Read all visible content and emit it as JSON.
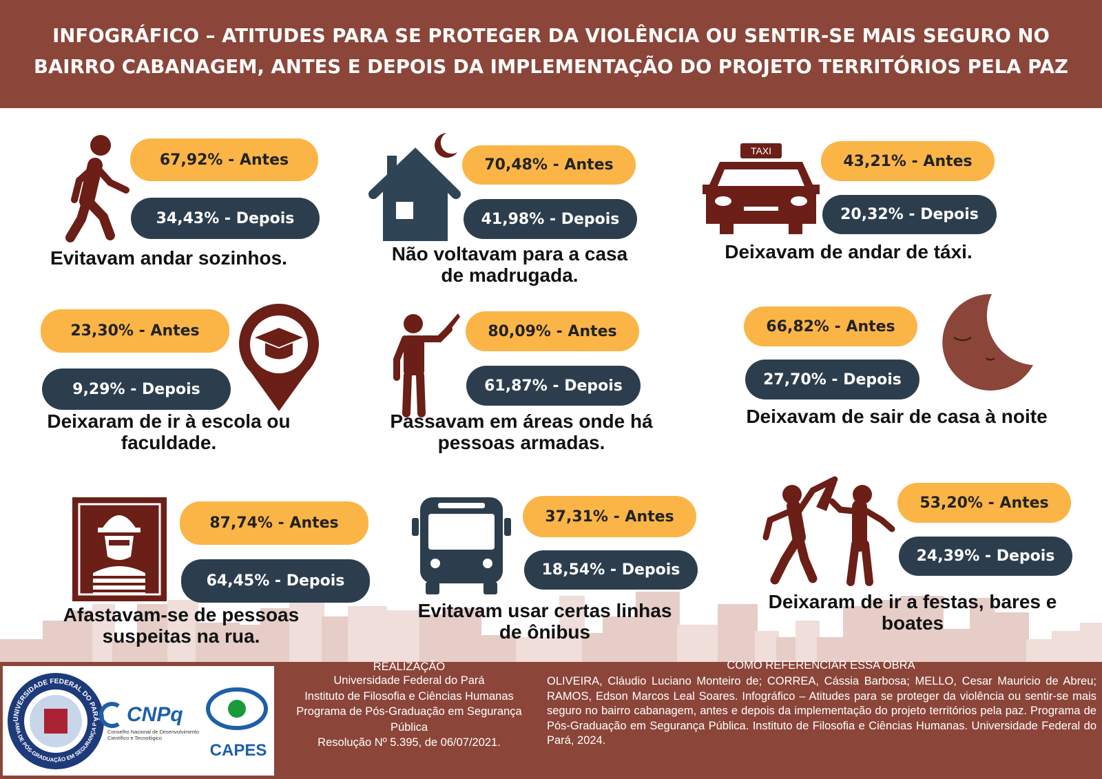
{
  "header": {
    "title_lines": [
      "INFOGRÁFICO – ATITUDES PARA SE PROTEGER DA VIOLÊNCIA OU SENTIR-SE MAIS SEGURO NO",
      "BAIRRO CABANAGEM, ANTES E DEPOIS DA IMPLEMENTAÇÃO DO PROJETO TERRITÓRIOS PELA PAZ"
    ]
  },
  "items": [
    {
      "antes": "67,92% - Antes",
      "depois": "34,43% - Depois",
      "label_lines": [
        "Evitavam andar sozinhos."
      ]
    },
    {
      "antes": "70,48% - Antes",
      "depois": "41,98% - Depois",
      "label_lines": [
        "Não voltavam para a casa",
        "de madrugada."
      ]
    },
    {
      "antes": "43,21% - Antes",
      "depois": "20,32% - Depois",
      "label_lines": [
        "Deixavam de andar de táxi."
      ]
    },
    {
      "antes": "23,30% - Antes",
      "depois": "9,29% - Depois",
      "label_lines": [
        "Deixaram de ir à escola ou",
        "faculdade."
      ]
    },
    {
      "antes": "80,09% - Antes",
      "depois": "61,87% - Depois",
      "label_lines": [
        "Passavam em áreas onde há",
        "pessoas armadas."
      ]
    },
    {
      "antes": "66,82% - Antes",
      "depois": "27,70% - Depois",
      "label_lines": [
        "Deixavam de sair de casa à noite"
      ]
    },
    {
      "antes": "87,74% - Antes",
      "depois": "64,45% - Depois",
      "label_lines": [
        "Afastavam-se de pessoas",
        "suspeitas na rua."
      ]
    },
    {
      "antes": "37,31% - Antes",
      "depois": "18,54% - Depois",
      "label_lines": [
        "Evitavam usar certas linhas",
        "de ônibus"
      ]
    },
    {
      "antes": "53,20% - Antes",
      "depois": "24,39% - Depois",
      "label_lines": [
        "Deixaram de ir a festas, bares e",
        "boates"
      ]
    }
  ],
  "taxi_sign": "TAXI",
  "logos": {
    "ufpa_ring_top": "UNIVERSIDADE FEDERAL DO PARÁ",
    "ufpa_ring_bottom": "PROGRAMA DE PÓS-GRADUAÇÃO EM SEGURANÇA PÚBLICA",
    "cnpq": "CNPq",
    "cnpq_sub_lines": [
      "Conselho Nacional de Desenvolvimento",
      "Científico e Tecnológico"
    ],
    "capes": "CAPES"
  },
  "realizacao": {
    "title": "REALIZAÇÃO",
    "lines": [
      "Universidade Federal do Pará",
      "Instituto de Filosofia e Ciências Humanas",
      "Programa de Pós-Graduação em Segurança",
      "Pública",
      "Resolução Nº 5.395, de 06/07/2021."
    ]
  },
  "referencia": {
    "title": "COMO REFERENCIAR ESSA OBRA",
    "text": "OLIVEIRA, Cláudio Luciano Monteiro de; CORREA, Cássia Barbosa; MELLO, Cesar Mauricio de Abreu; RAMOS, Edson Marcos Leal Soares. Infográfico – Atitudes para se proteger da violência ou sentir-se mais seguro no bairro cabanagem, antes e depois da implementação do projeto territórios pela paz. Programa de Pós-Graduação em Segurança Pública. Instituto de Filosofia e Ciências Humanas. Universidade Federal do Pará, 2024."
  }
}
